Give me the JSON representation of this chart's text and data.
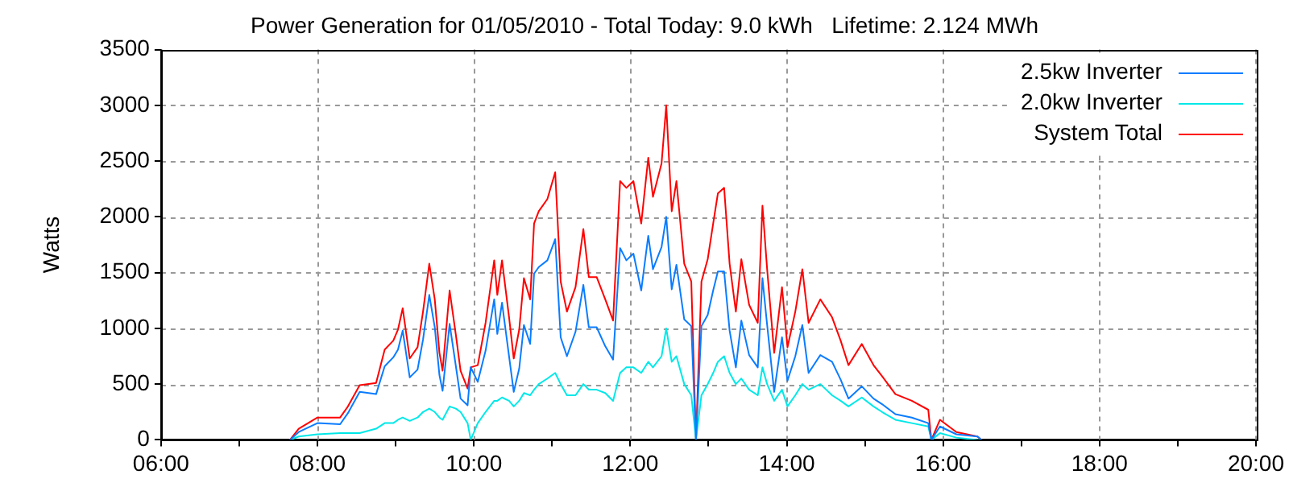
{
  "chart_data": {
    "type": "line",
    "title": "Power Generation for 01/05/2010 - Total Today: 9.0 kWh   Lifetime: 2.124 MWh",
    "ylabel": "Watts",
    "x": [
      7.65,
      7.76,
      8.0,
      8.29,
      8.39,
      8.54,
      8.75,
      8.86,
      8.97,
      9.03,
      9.09,
      9.18,
      9.28,
      9.35,
      9.43,
      9.5,
      9.56,
      9.6,
      9.69,
      9.77,
      9.83,
      9.92,
      9.96,
      10.05,
      10.15,
      10.26,
      10.3,
      10.36,
      10.45,
      10.51,
      10.58,
      10.64,
      10.72,
      10.77,
      10.83,
      10.94,
      11.04,
      11.11,
      11.19,
      11.3,
      11.4,
      11.47,
      11.57,
      11.68,
      11.78,
      11.87,
      11.95,
      12.04,
      12.14,
      12.23,
      12.29,
      12.4,
      12.46,
      12.53,
      12.59,
      12.69,
      12.78,
      12.84,
      12.91,
      12.99,
      13.06,
      13.12,
      13.2,
      13.27,
      13.35,
      13.42,
      13.52,
      13.63,
      13.69,
      13.75,
      13.84,
      13.94,
      14.01,
      14.11,
      14.2,
      14.28,
      14.43,
      14.58,
      14.69,
      14.79,
      14.96,
      15.11,
      15.22,
      15.39,
      15.6,
      15.81,
      15.85,
      15.96,
      16.17,
      16.44,
      16.49
    ],
    "series": [
      {
        "name": "2.5kw Inverter",
        "color": "#0a7cff",
        "values": [
          0,
          70,
          150,
          140,
          240,
          430,
          410,
          660,
          740,
          810,
          980,
          560,
          630,
          900,
          1300,
          1010,
          580,
          440,
          1040,
          660,
          370,
          310,
          650,
          520,
          800,
          1260,
          950,
          1230,
          750,
          430,
          640,
          1030,
          860,
          1490,
          1550,
          1610,
          1800,
          920,
          750,
          970,
          1390,
          1010,
          1010,
          840,
          720,
          1720,
          1610,
          1670,
          1340,
          1830,
          1530,
          1730,
          2000,
          1350,
          1570,
          1080,
          1020,
          0,
          1020,
          1120,
          1340,
          1510,
          1510,
          980,
          650,
          1070,
          760,
          650,
          1450,
          1030,
          430,
          920,
          530,
          750,
          1030,
          600,
          760,
          700,
          540,
          370,
          480,
          370,
          320,
          230,
          200,
          150,
          0,
          120,
          50,
          30,
          0
        ]
      },
      {
        "name": "2.0kw Inverter",
        "color": "#00e8e8",
        "values": [
          0,
          30,
          50,
          60,
          60,
          60,
          100,
          150,
          150,
          180,
          200,
          170,
          200,
          250,
          280,
          250,
          200,
          180,
          300,
          280,
          250,
          150,
          0,
          150,
          250,
          350,
          350,
          380,
          350,
          300,
          350,
          420,
          400,
          450,
          500,
          550,
          600,
          500,
          400,
          400,
          500,
          450,
          450,
          420,
          350,
          600,
          650,
          650,
          600,
          700,
          650,
          750,
          1000,
          700,
          750,
          500,
          400,
          0,
          400,
          500,
          600,
          700,
          750,
          600,
          500,
          550,
          450,
          400,
          650,
          500,
          350,
          450,
          300,
          400,
          500,
          450,
          500,
          400,
          350,
          300,
          380,
          300,
          250,
          180,
          150,
          120,
          0,
          60,
          20,
          0,
          0
        ]
      },
      {
        "name": "System Total",
        "color": "#ff0000",
        "values": [
          0,
          100,
          200,
          200,
          300,
          490,
          510,
          810,
          890,
          990,
          1180,
          730,
          830,
          1150,
          1580,
          1260,
          780,
          620,
          1340,
          940,
          620,
          460,
          650,
          670,
          1050,
          1610,
          1300,
          1610,
          1100,
          730,
          990,
          1450,
          1260,
          1940,
          2050,
          2160,
          2400,
          1420,
          1150,
          1370,
          1890,
          1460,
          1460,
          1260,
          1070,
          2320,
          2260,
          2320,
          1940,
          2530,
          2180,
          2480,
          3000,
          2050,
          2320,
          1580,
          1420,
          0,
          1420,
          1620,
          1940,
          2210,
          2260,
          1580,
          1150,
          1620,
          1210,
          1050,
          2100,
          1530,
          780,
          1370,
          830,
          1150,
          1530,
          1050,
          1260,
          1100,
          890,
          670,
          860,
          670,
          570,
          410,
          350,
          270,
          0,
          180,
          70,
          30,
          0
        ]
      }
    ],
    "xlim": [
      6,
      20
    ],
    "xticks": [
      {
        "value": 6,
        "label": "06:00"
      },
      {
        "value": 7,
        "label": null
      },
      {
        "value": 8,
        "label": "08:00"
      },
      {
        "value": 9,
        "label": null
      },
      {
        "value": 10,
        "label": "10:00"
      },
      {
        "value": 11,
        "label": null
      },
      {
        "value": 12,
        "label": "12:00"
      },
      {
        "value": 13,
        "label": null
      },
      {
        "value": 14,
        "label": "14:00"
      },
      {
        "value": 15,
        "label": null
      },
      {
        "value": 16,
        "label": "16:00"
      },
      {
        "value": 17,
        "label": null
      },
      {
        "value": 18,
        "label": "18:00"
      },
      {
        "value": 19,
        "label": null
      },
      {
        "value": 20,
        "label": "20:00"
      }
    ],
    "ylim": [
      0,
      3500
    ],
    "yticks": [
      0,
      500,
      1000,
      1500,
      2000,
      2500,
      3000,
      3500
    ],
    "grid": true,
    "legend": "top right",
    "marker": "none",
    "line_style": "solid"
  }
}
